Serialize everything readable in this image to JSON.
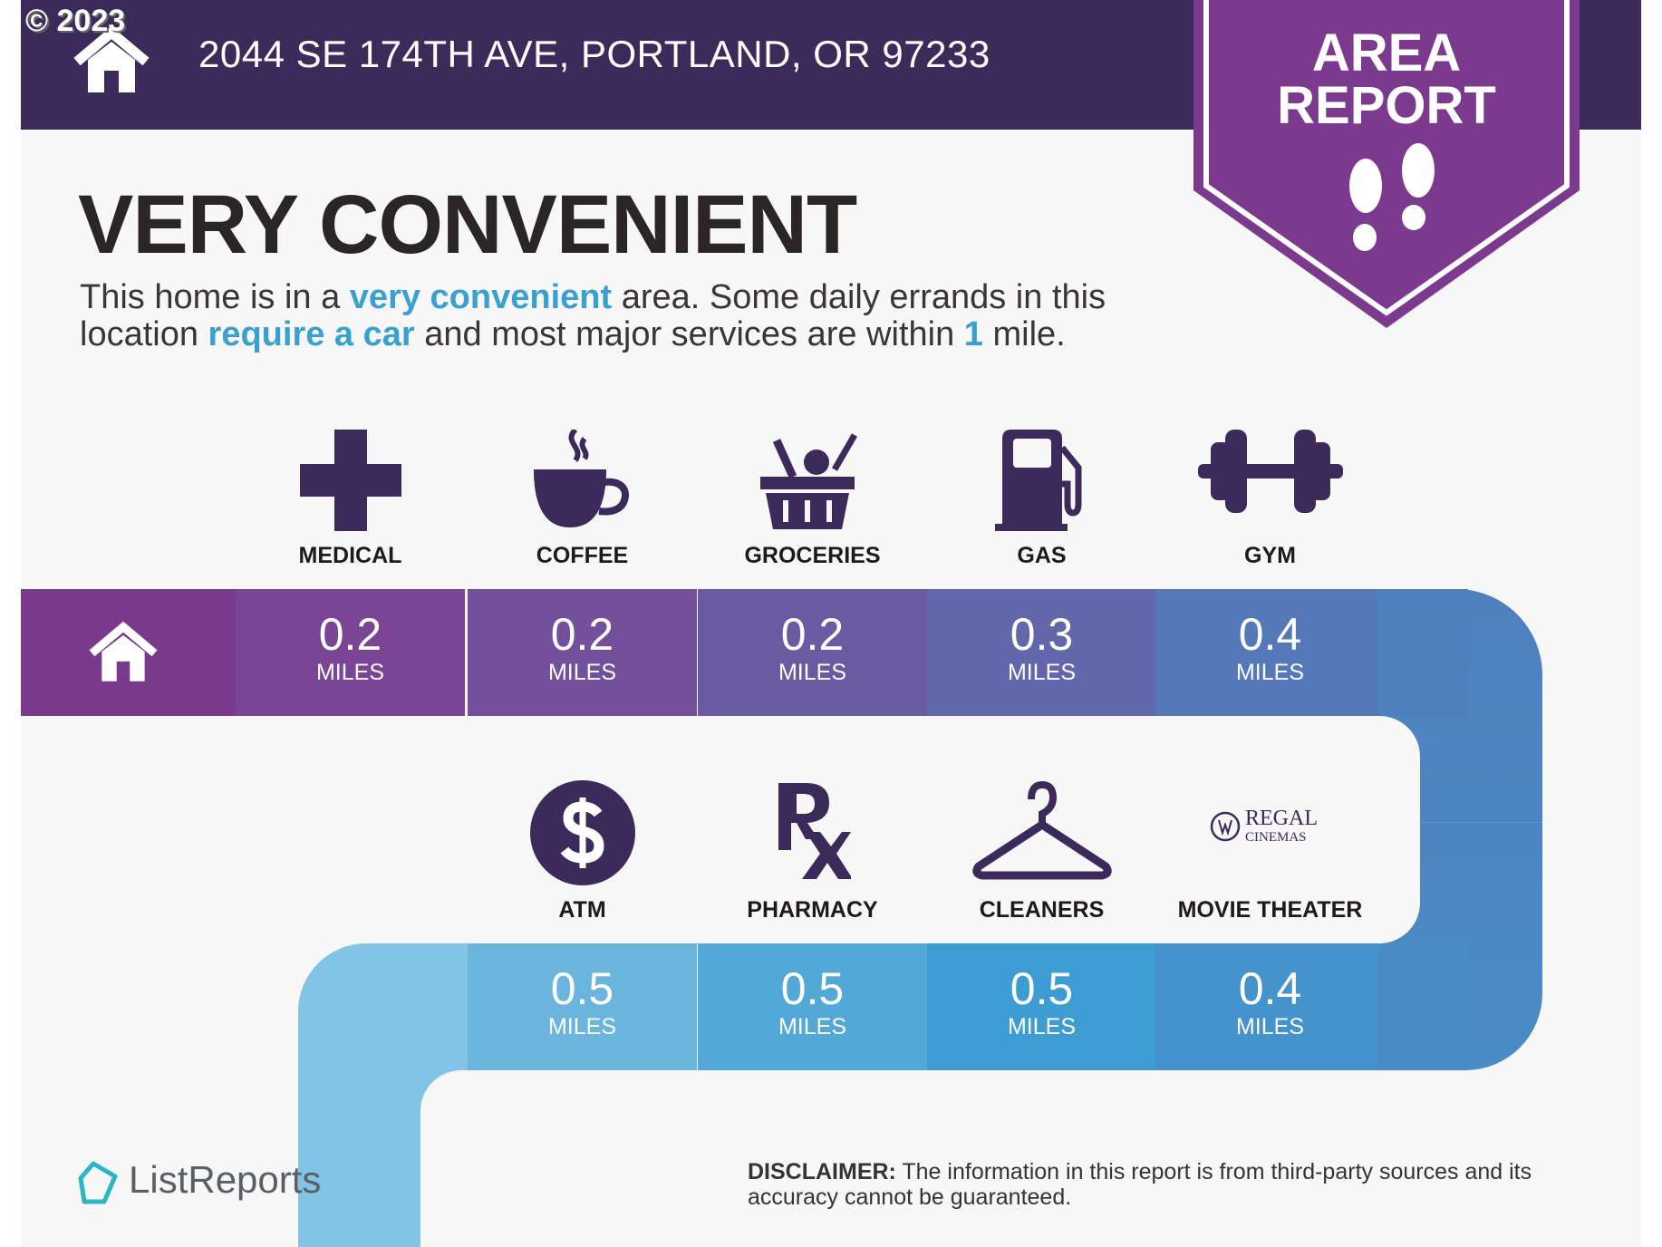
{
  "copyright": "© 2023",
  "header": {
    "address": "2044 SE 174TH AVE, PORTLAND, OR 97233"
  },
  "banner": {
    "line1": "AREA",
    "line2": "REPORT",
    "icon": "footprints-icon"
  },
  "headline": "VERY CONVENIENT",
  "summary": {
    "p1": "This home is in a ",
    "h1": "very convenient",
    "p2": " area. Some daily errands in this location ",
    "h2": "require a car",
    "p3": " and most major services are within ",
    "h3": "1",
    "p4": " mile."
  },
  "unit": "MILES",
  "services_row1": [
    {
      "label": "MEDICAL",
      "distance": "0.2",
      "icon": "medical-cross-icon"
    },
    {
      "label": "COFFEE",
      "distance": "0.2",
      "icon": "coffee-cup-icon"
    },
    {
      "label": "GROCERIES",
      "distance": "0.2",
      "icon": "grocery-basket-icon"
    },
    {
      "label": "GAS",
      "distance": "0.3",
      "icon": "gas-pump-icon"
    },
    {
      "label": "GYM",
      "distance": "0.4",
      "icon": "dumbbell-icon"
    }
  ],
  "services_row2": [
    {
      "label": "ATM",
      "distance": "0.5",
      "icon": "dollar-icon"
    },
    {
      "label": "PHARMACY",
      "distance": "0.5",
      "icon": "rx-icon"
    },
    {
      "label": "CLEANERS",
      "distance": "0.5",
      "icon": "hanger-icon"
    },
    {
      "label": "MOVIE THEATER",
      "distance": "0.4",
      "icon": "regal-cinemas-logo",
      "logo_text": "REGAL CINEMAS"
    }
  ],
  "footer": {
    "brand": "ListReports",
    "disclaimer_label": "DISCLAIMER:",
    "disclaimer_text": " The information in this report is from third-party sources and its accuracy cannot be guaranteed."
  },
  "colors": {
    "header": "#3c2a5a",
    "banner": "#7b3a8e",
    "accent": "#3aa0d0",
    "icon": "#3c2a5a"
  }
}
